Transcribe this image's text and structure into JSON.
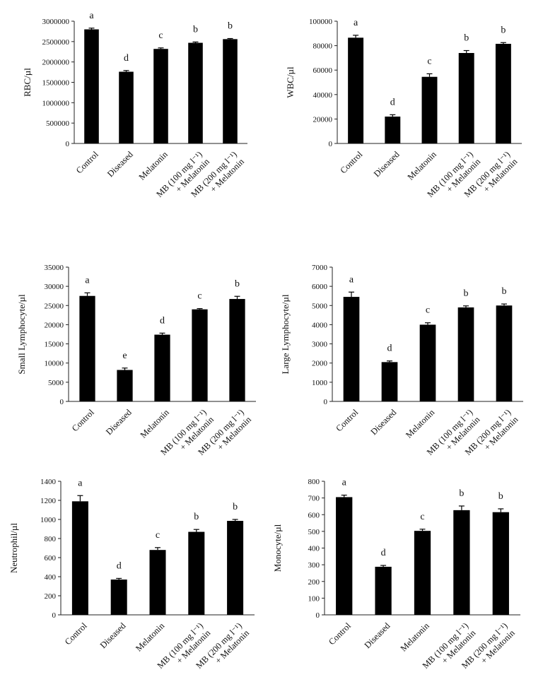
{
  "chart_data": [
    {
      "type": "bar",
      "ylabel": "RBC/µl",
      "ylim": [
        0,
        3000000
      ],
      "yticks": [
        0,
        500000,
        1000000,
        1500000,
        2000000,
        2500000,
        3000000
      ],
      "categories": [
        [
          "Control"
        ],
        [
          "Diseased"
        ],
        [
          "Melatonin"
        ],
        [
          "MB (100 mg l⁻¹)",
          "+ Melatonin"
        ],
        [
          "MB (200 mg l⁻¹)",
          "+ Melatonin"
        ]
      ],
      "values": [
        2800000,
        1760000,
        2320000,
        2470000,
        2560000
      ],
      "errors": [
        30000,
        30000,
        25000,
        20000,
        15000
      ],
      "letters": [
        "a",
        "d",
        "c",
        "b",
        "b"
      ],
      "grid": false
    },
    {
      "type": "bar",
      "ylabel": "WBC/µl",
      "ylim": [
        0,
        100000
      ],
      "yticks": [
        0,
        20000,
        40000,
        60000,
        80000,
        100000
      ],
      "categories": [
        [
          "Control"
        ],
        [
          "Diseased"
        ],
        [
          "Melatonin"
        ],
        [
          "MB (100 mg l⁻¹)",
          "+ Melatonin"
        ],
        [
          "MB (200 mg l⁻¹)",
          "+ Melatonin"
        ]
      ],
      "values": [
        86500,
        22000,
        54500,
        74000,
        81500
      ],
      "errors": [
        2000,
        1500,
        2500,
        2000,
        1000
      ],
      "letters": [
        "a",
        "d",
        "c",
        "b",
        "b"
      ],
      "grid": false
    },
    {
      "type": "bar",
      "ylabel": "Small Lymphocyte/µl",
      "ylim": [
        0,
        35000
      ],
      "yticks": [
        0,
        5000,
        10000,
        15000,
        20000,
        25000,
        30000,
        35000
      ],
      "categories": [
        [
          "Control"
        ],
        [
          "Diseased"
        ],
        [
          "Melatonin"
        ],
        [
          "MB (100 mg l⁻¹)",
          "+ Melatonin"
        ],
        [
          "MB (200 mg l⁻¹)",
          "+ Melatonin"
        ]
      ],
      "values": [
        27500,
        8200,
        17400,
        24000,
        26700
      ],
      "errors": [
        800,
        500,
        400,
        200,
        700
      ],
      "letters": [
        "a",
        "e",
        "d",
        "c",
        "b"
      ],
      "grid": false
    },
    {
      "type": "bar",
      "ylabel": "Large Lymphocyte/µl",
      "ylim": [
        0,
        7000
      ],
      "yticks": [
        0,
        1000,
        2000,
        3000,
        4000,
        5000,
        6000,
        7000
      ],
      "categories": [
        [
          "Control"
        ],
        [
          "Diseased"
        ],
        [
          "Melatonin"
        ],
        [
          "MB (100 mg l⁻¹)",
          "+ Melatonin"
        ],
        [
          "MB (200 mg l⁻¹)",
          "+ Melatonin"
        ]
      ],
      "values": [
        5450,
        2050,
        4000,
        4900,
        5000
      ],
      "errors": [
        250,
        60,
        100,
        80,
        80
      ],
      "letters": [
        "a",
        "d",
        "c",
        "b",
        "b"
      ],
      "grid": false
    },
    {
      "type": "bar",
      "ylabel": "Neutrophil/µl",
      "ylim": [
        0,
        1400
      ],
      "yticks": [
        0,
        200,
        400,
        600,
        800,
        1000,
        1200,
        1400
      ],
      "categories": [
        [
          "Control"
        ],
        [
          "Diseased"
        ],
        [
          "Melatonin"
        ],
        [
          "MB (100 mg l⁻¹)",
          "+ Melatonin"
        ],
        [
          "MB (200 mg l⁻¹)",
          "+ Melatonin"
        ]
      ],
      "values": [
        1190,
        370,
        680,
        870,
        985
      ],
      "errors": [
        60,
        12,
        25,
        25,
        15
      ],
      "letters": [
        "a",
        "d",
        "c",
        "b",
        "b"
      ],
      "grid": false
    },
    {
      "type": "bar",
      "ylabel": "Monocyte/µl",
      "ylim": [
        0,
        800
      ],
      "yticks": [
        0,
        100,
        200,
        300,
        400,
        500,
        600,
        700,
        800
      ],
      "categories": [
        [
          "Control"
        ],
        [
          "Diseased"
        ],
        [
          "Melatonin"
        ],
        [
          "MB (100 mg l⁻¹)",
          "+ Melatonin"
        ],
        [
          "MB (200 mg l⁻¹)",
          "+ Melatonin"
        ]
      ],
      "values": [
        705,
        288,
        503,
        627,
        615
      ],
      "errors": [
        12,
        8,
        10,
        25,
        20
      ],
      "letters": [
        "a",
        "d",
        "c",
        "b",
        "b"
      ],
      "grid": false
    }
  ]
}
